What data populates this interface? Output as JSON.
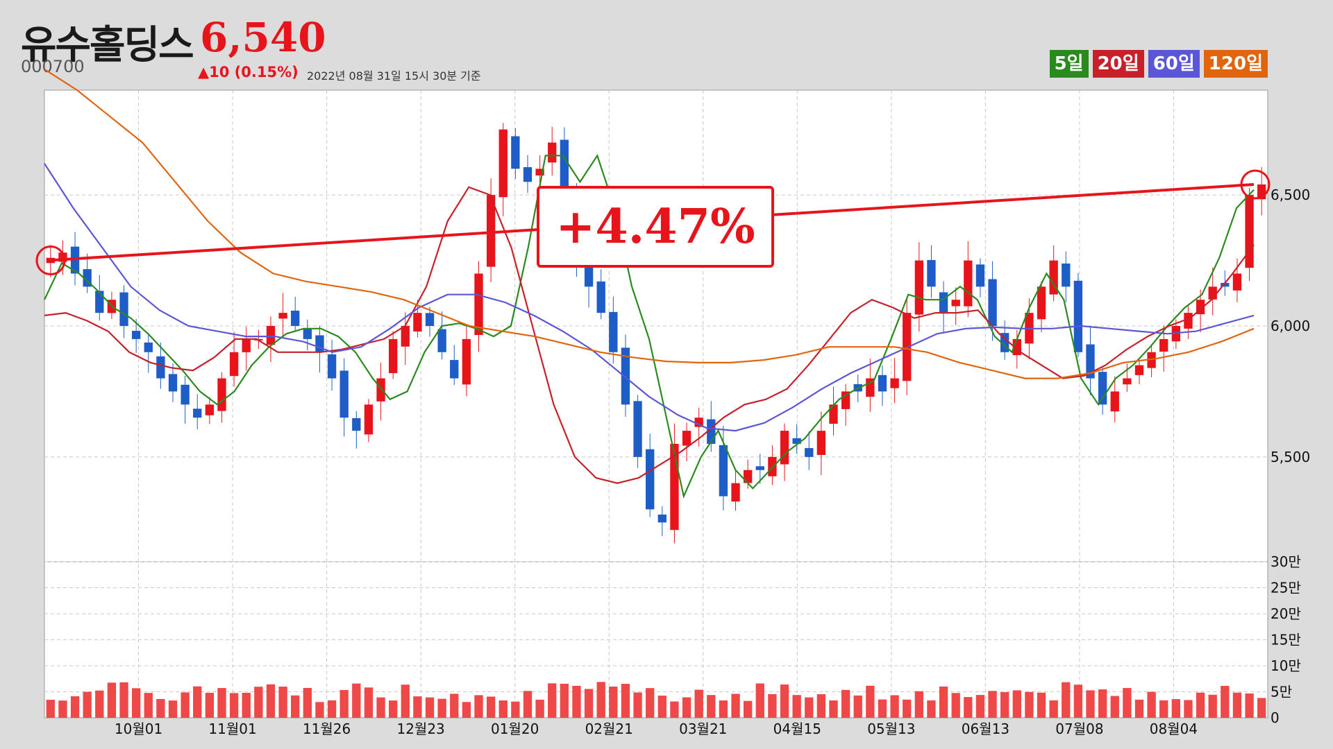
{
  "header": {
    "stock_name": "유수홀딩스",
    "price": "6,540",
    "code": "000700",
    "change": "▲10 (0.15%)",
    "timestamp": "2022년 08월 31일 15시 30분 기준"
  },
  "legend": [
    {
      "label": "5일",
      "color": "#2a8a1e"
    },
    {
      "label": "20일",
      "color": "#c8202a"
    },
    {
      "label": "60일",
      "color": "#5b55d8"
    },
    {
      "label": "120일",
      "color": "#e0650e"
    }
  ],
  "callout": {
    "text": "+4.47%",
    "from_price": 6250,
    "to_price": 6540
  },
  "chart_data": {
    "type": "candlestick",
    "title": "유수홀딩스",
    "x_ticks": [
      "10월01",
      "11월01",
      "11월26",
      "12월23",
      "01월20",
      "02월21",
      "03월21",
      "04월15",
      "05월13",
      "06월13",
      "07월08",
      "08월04"
    ],
    "price_axis": {
      "ticks": [
        "5,500",
        "6,000",
        "6,500"
      ],
      "tick_values": [
        5500,
        6000,
        6500
      ],
      "range": [
        5100,
        6900
      ]
    },
    "volume_axis": {
      "ticks": [
        "0",
        "5만",
        "10만",
        "15만",
        "20만",
        "25만",
        "30만"
      ],
      "tick_values": [
        0,
        50000,
        100000,
        150000,
        200000,
        250000,
        300000
      ],
      "range": [
        0,
        300000
      ]
    },
    "close_series": [
      6260,
      6280,
      6200,
      6150,
      6050,
      6100,
      6000,
      5950,
      5900,
      5800,
      5750,
      5700,
      5650,
      5700,
      5800,
      5900,
      5950,
      5950,
      6000,
      6050,
      6000,
      5950,
      5900,
      5800,
      5650,
      5600,
      5700,
      5800,
      5950,
      6000,
      6050,
      6000,
      5900,
      5800,
      5950,
      6200,
      6500,
      6750,
      6600,
      6550,
      6600,
      6700,
      6500,
      6250,
      6150,
      6050,
      5900,
      5700,
      5500,
      5300,
      5250,
      5550,
      5600,
      5650,
      5550,
      5350,
      5400,
      5450,
      5450,
      5500,
      5600,
      5550,
      5500,
      5600,
      5700,
      5750,
      5750,
      5800,
      5750,
      5800,
      6050,
      6250,
      6150,
      6050,
      6100,
      6250,
      6150,
      6000,
      5900,
      5950,
      6050,
      6150,
      6250,
      6150,
      5900,
      5800,
      5700,
      5750,
      5800,
      5850,
      5900,
      5950,
      6000,
      6050,
      6100,
      6150,
      6150,
      6200,
      6500,
      6540
    ],
    "ma_series": [
      {
        "name": "5일",
        "color": "#2a8a1e",
        "values": [
          6100,
          6240,
          6200,
          6140,
          6070,
          6030,
          5970,
          5900,
          5830,
          5750,
          5700,
          5750,
          5850,
          5920,
          5970,
          5990,
          5990,
          5960,
          5900,
          5800,
          5720,
          5750,
          5900,
          6000,
          6010,
          5990,
          5960,
          6000,
          6300,
          6650,
          6650,
          6550,
          6650,
          6450,
          6150,
          5950,
          5650,
          5350,
          5500,
          5600,
          5450,
          5380,
          5450,
          5520,
          5570,
          5650,
          5720,
          5760,
          5790,
          5950,
          6120,
          6100,
          6100,
          6150,
          6100,
          5960,
          5900,
          6070,
          6200,
          6100,
          5800,
          5700,
          5800,
          5850,
          5920,
          6000,
          6070,
          6120,
          6260,
          6450,
          6520
        ]
      },
      {
        "name": "20일",
        "color": "#c8202a",
        "values": [
          6040,
          6050,
          6020,
          5980,
          5900,
          5860,
          5840,
          5830,
          5880,
          5950,
          5950,
          5900,
          5900,
          5900,
          5910,
          5930,
          5950,
          6000,
          6150,
          6400,
          6530,
          6500,
          6300,
          6000,
          5700,
          5500,
          5420,
          5400,
          5420,
          5470,
          5520,
          5580,
          5650,
          5700,
          5720,
          5760,
          5850,
          5950,
          6050,
          6100,
          6070,
          6030,
          6050,
          6050,
          6060,
          5970,
          5900,
          5850,
          5800,
          5810,
          5850,
          5910,
          5960,
          6000,
          6030,
          6100,
          6200,
          6310
        ]
      },
      {
        "name": "60일",
        "color": "#5b55d8",
        "values": [
          6620,
          6450,
          6300,
          6150,
          6060,
          6000,
          5980,
          5960,
          5960,
          5940,
          5900,
          5920,
          5990,
          6070,
          6120,
          6120,
          6090,
          6040,
          5980,
          5910,
          5820,
          5730,
          5660,
          5610,
          5600,
          5630,
          5690,
          5760,
          5820,
          5870,
          5920,
          5970,
          5990,
          5995,
          5990,
          5990,
          6000,
          5990,
          5980,
          5970,
          5980,
          6010,
          6040
        ]
      },
      {
        "name": "120일",
        "color": "#e0650e",
        "values": [
          6980,
          6900,
          6800,
          6700,
          6550,
          6400,
          6280,
          6200,
          6170,
          6150,
          6130,
          6100,
          6050,
          6000,
          5980,
          5960,
          5930,
          5900,
          5880,
          5865,
          5860,
          5860,
          5870,
          5890,
          5920,
          5920,
          5920,
          5900,
          5860,
          5830,
          5800,
          5800,
          5820,
          5860,
          5875,
          5900,
          5940,
          5990
        ]
      }
    ]
  }
}
